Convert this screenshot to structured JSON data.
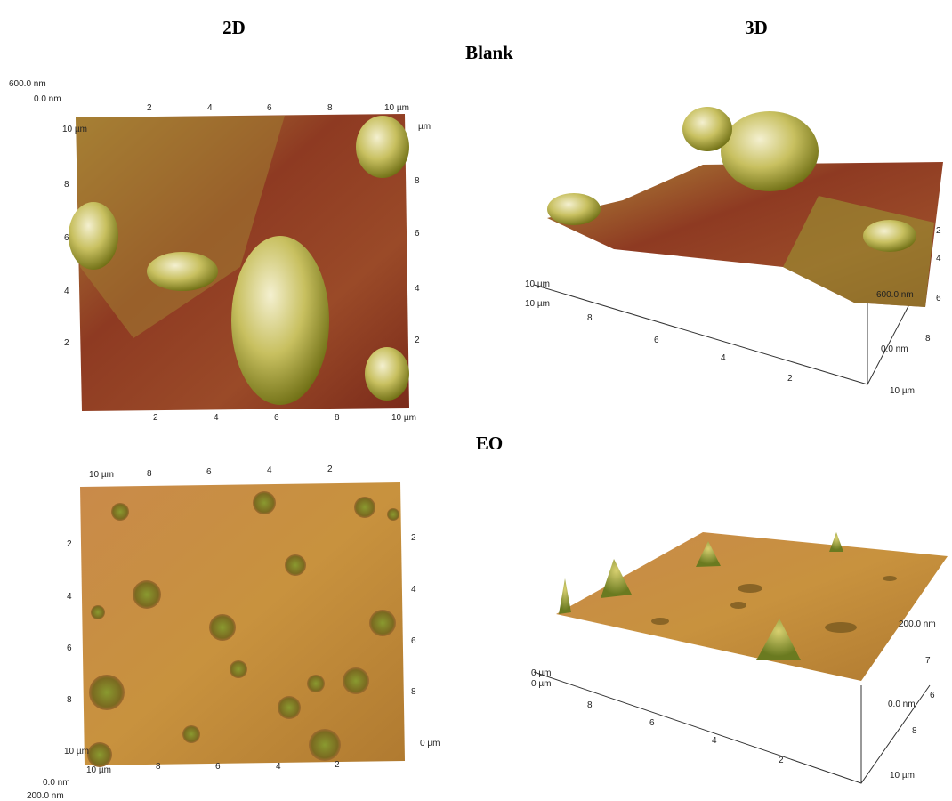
{
  "headers": [
    "2D",
    "3D"
  ],
  "panels": [
    {
      "label": "Blank",
      "image_2d": {
        "z_labels": [
          "600.0 nm",
          "0.0 nm"
        ],
        "top_ticks": [
          "2",
          "4",
          "6",
          "8",
          "10 µm"
        ],
        "left_ticks": [
          "10 µm",
          "8",
          "6",
          "4",
          "2"
        ],
        "right_ticks": [
          "µm",
          "8",
          "6",
          "4",
          "2"
        ],
        "bottom_ticks": [
          "2",
          "4",
          "6",
          "8",
          "10 µm"
        ]
      },
      "image_3d": {
        "z_labels": [
          "600.0 nm",
          "0.0 nm"
        ],
        "front_ticks": [
          "8",
          "6",
          "4",
          "2",
          "10 µm"
        ],
        "left_ticks": [
          "10 µm",
          "10 µm"
        ],
        "side_ticks": [
          "2",
          "4",
          "6",
          "8"
        ]
      }
    },
    {
      "label": "EO",
      "image_2d": {
        "z_labels": [
          "0.0 nm",
          "200.0 nm"
        ],
        "top_ticks": [
          "10 µm",
          "8",
          "6",
          "4",
          "2"
        ],
        "left_ticks": [
          "2",
          "4",
          "6",
          "8",
          "10 µm"
        ],
        "right_ticks": [
          "2",
          "4",
          "6",
          "8",
          "0 µm"
        ],
        "bottom_ticks": [
          "10 µm",
          "8",
          "6",
          "4",
          "2"
        ]
      },
      "image_3d": {
        "z_labels": [
          "200.0 nm",
          "0.0 nm"
        ],
        "front_ticks": [
          "8",
          "6",
          "4",
          "2",
          "10 µm"
        ],
        "left_ticks": [
          "0 µm",
          "0 µm"
        ],
        "side_ticks": [
          "7",
          "6",
          "8"
        ]
      }
    }
  ]
}
